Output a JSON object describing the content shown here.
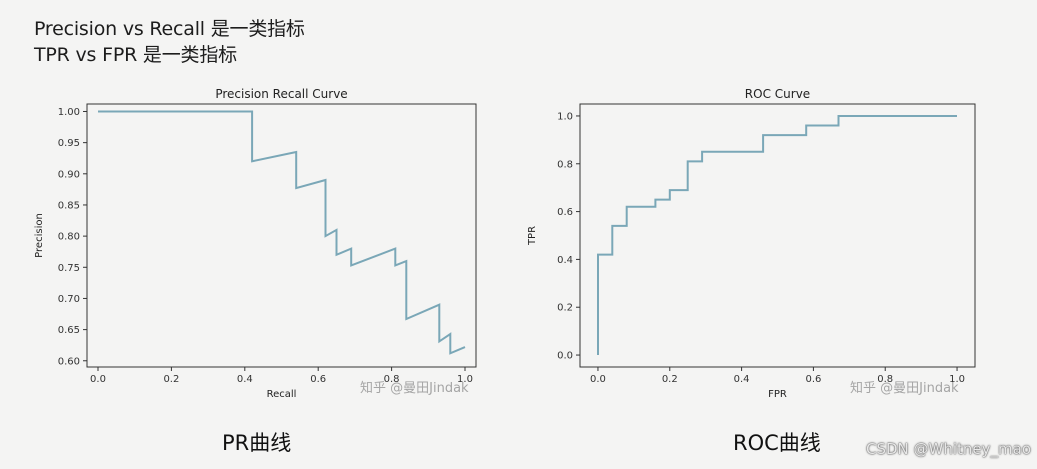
{
  "headings": {
    "line1": "Precision vs Recall 是一类指标",
    "line2": "TPR vs FPR 是一类指标"
  },
  "captions": {
    "pr": "PR曲线",
    "roc": "ROC曲线"
  },
  "watermarks": {
    "left": "知乎 @曼田Jindak",
    "right": "知乎 @曼田Jindak"
  },
  "credit": "CSDN @Whitney_mao",
  "colors": {
    "curve": "#7aa7b7",
    "axis": "#333333",
    "background": "#f4f4f3"
  },
  "chart_data": [
    {
      "type": "line",
      "step": true,
      "title": "Precision Recall Curve",
      "xlabel": "Recall",
      "ylabel": "Precision",
      "xlim": [
        -0.03,
        1.03
      ],
      "ylim": [
        0.59,
        1.012
      ],
      "xticks": [
        0.0,
        0.2,
        0.4,
        0.6,
        0.8,
        1.0
      ],
      "xtick_labels": [
        "0.0",
        "0.2",
        "0.4",
        "0.6",
        "0.8",
        "1.0"
      ],
      "yticks": [
        0.6,
        0.65,
        0.7,
        0.75,
        0.8,
        0.85,
        0.9,
        0.95,
        1.0
      ],
      "ytick_labels": [
        "0.60",
        "0.65",
        "0.70",
        "0.75",
        "0.80",
        "0.85",
        "0.90",
        "0.95",
        "1.00"
      ],
      "grid": false,
      "points": [
        [
          0.0,
          1.0
        ],
        [
          0.42,
          1.0
        ],
        [
          0.42,
          0.92
        ],
        [
          0.54,
          0.935
        ],
        [
          0.54,
          0.877
        ],
        [
          0.62,
          0.89
        ],
        [
          0.62,
          0.8
        ],
        [
          0.65,
          0.81
        ],
        [
          0.65,
          0.77
        ],
        [
          0.69,
          0.78
        ],
        [
          0.69,
          0.753
        ],
        [
          0.81,
          0.78
        ],
        [
          0.81,
          0.753
        ],
        [
          0.84,
          0.76
        ],
        [
          0.84,
          0.667
        ],
        [
          0.93,
          0.69
        ],
        [
          0.93,
          0.631
        ],
        [
          0.96,
          0.643
        ],
        [
          0.96,
          0.612
        ],
        [
          1.0,
          0.622
        ]
      ]
    },
    {
      "type": "line",
      "step": true,
      "title": "ROC Curve",
      "xlabel": "FPR",
      "ylabel": "TPR",
      "xlim": [
        -0.05,
        1.05
      ],
      "ylim": [
        -0.05,
        1.05
      ],
      "xticks": [
        0.0,
        0.2,
        0.4,
        0.6,
        0.8,
        1.0
      ],
      "xtick_labels": [
        "0.0",
        "0.2",
        "0.4",
        "0.6",
        "0.8",
        "1.0"
      ],
      "yticks": [
        0.0,
        0.2,
        0.4,
        0.6,
        0.8,
        1.0
      ],
      "ytick_labels": [
        "0.0",
        "0.2",
        "0.4",
        "0.6",
        "0.8",
        "1.0"
      ],
      "grid": false,
      "points": [
        [
          0.0,
          0.0
        ],
        [
          0.0,
          0.42
        ],
        [
          0.04,
          0.42
        ],
        [
          0.04,
          0.54
        ],
        [
          0.08,
          0.54
        ],
        [
          0.08,
          0.62
        ],
        [
          0.16,
          0.62
        ],
        [
          0.16,
          0.65
        ],
        [
          0.2,
          0.65
        ],
        [
          0.2,
          0.69
        ],
        [
          0.25,
          0.69
        ],
        [
          0.25,
          0.81
        ],
        [
          0.29,
          0.81
        ],
        [
          0.29,
          0.85
        ],
        [
          0.46,
          0.85
        ],
        [
          0.46,
          0.92
        ],
        [
          0.58,
          0.92
        ],
        [
          0.58,
          0.96
        ],
        [
          0.67,
          0.96
        ],
        [
          0.67,
          1.0
        ],
        [
          1.0,
          1.0
        ]
      ]
    }
  ]
}
